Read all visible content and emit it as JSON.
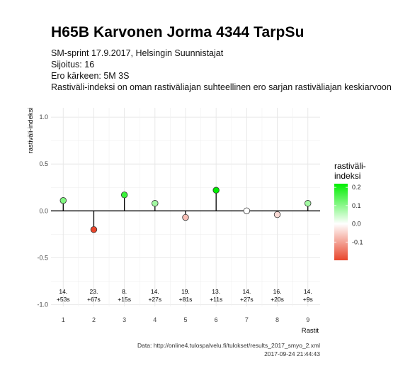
{
  "chart_data": {
    "type": "scatter",
    "style": "lollipop",
    "title": "H65B Karvonen Jorma 4344 TarpSu",
    "subtitle": [
      "SM-sprint 17.9.2017, Helsingin Suunnistajat",
      "Sijoitus: 16",
      "Ero kärkeen: 5M 3S",
      "Rastiväli-indeksi on oman rastiväliajan suhteellinen ero sarjan rastiväliajan keskiarvoon"
    ],
    "xlabel": "Rastit",
    "ylabel": "rastiväli-indeksi",
    "x": [
      1,
      2,
      3,
      4,
      5,
      6,
      7,
      8,
      9
    ],
    "y": [
      0.11,
      -0.2,
      0.17,
      0.08,
      -0.07,
      0.22,
      0.0,
      -0.04,
      0.08
    ],
    "annotations": [
      [
        "14.",
        "+53s"
      ],
      [
        "23.",
        "+67s"
      ],
      [
        "8.",
        "+15s"
      ],
      [
        "14.",
        "+27s"
      ],
      [
        "19.",
        "+81s"
      ],
      [
        "13.",
        "+11s"
      ],
      [
        "14.",
        "+27s"
      ],
      [
        "16.",
        "+20s"
      ],
      [
        "14.",
        "+9s"
      ]
    ],
    "xlim": [
      0.6,
      9.4
    ],
    "ylim": [
      -1.02,
      1.1
    ],
    "yticks": [
      -1.0,
      -0.5,
      0.0,
      0.5,
      1.0
    ],
    "ytick_labels": [
      "-1.0",
      "-0.5",
      "0.0",
      "0.5",
      "1.0"
    ],
    "xtick_labels": [
      "1",
      "2",
      "3",
      "4",
      "5",
      "6",
      "7",
      "8",
      "9"
    ],
    "grid": true,
    "legend": {
      "title": [
        "rastiväli-",
        "indeksi"
      ],
      "placement": "right",
      "ticks": [
        0.2,
        0.1,
        0.0,
        -0.1
      ],
      "tick_labels": [
        "0.2",
        "0.1",
        "0.0",
        "-0.1"
      ],
      "range": [
        -0.2,
        0.22
      ]
    },
    "colors": {
      "low": "#e8452b",
      "mid": "#ffffff",
      "high": "#00ee00",
      "zero_line": "#000000",
      "grid": "#e6e6e6"
    },
    "caption": [
      "Data: http://online4.tulospalvelu.fi/tulokset/results_2017_smyo_2.xml",
      "2017-09-24 21:44:43"
    ]
  }
}
